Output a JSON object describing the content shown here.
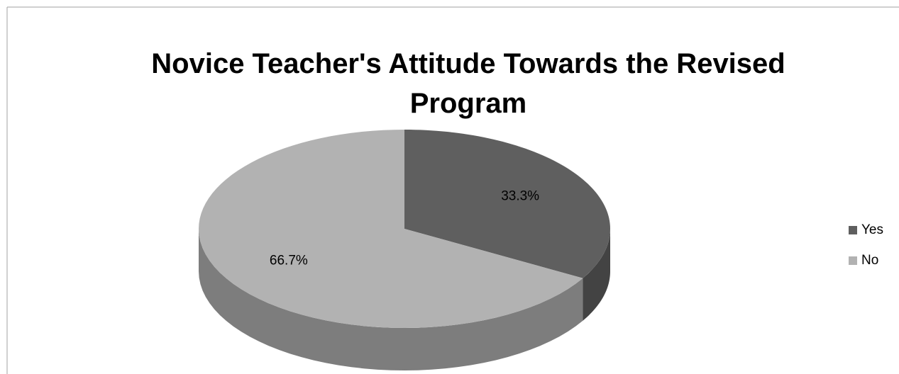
{
  "chart_data": {
    "type": "pie",
    "title": "Novice Teacher's Attitude Towards the Revised Program",
    "categories": [
      "Yes",
      "No"
    ],
    "values": [
      33.3,
      66.7
    ],
    "value_labels": [
      "33.3%",
      "66.7%"
    ],
    "colors": [
      "#5f5f5f",
      "#b2b2b2"
    ],
    "legend": "right"
  }
}
